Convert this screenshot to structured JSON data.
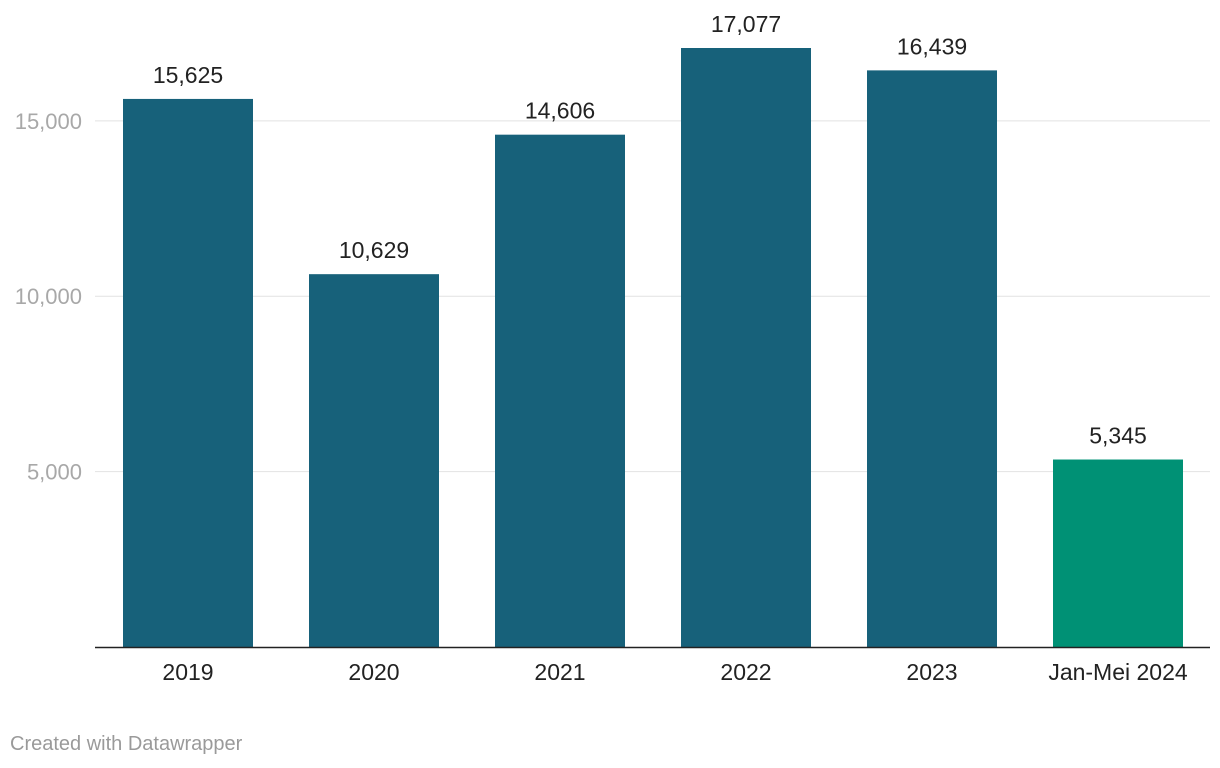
{
  "chart_data": {
    "type": "bar",
    "categories": [
      "2019",
      "2020",
      "2021",
      "2022",
      "2023",
      "Jan-Mei 2024"
    ],
    "values": [
      15625,
      10629,
      14606,
      17077,
      16439,
      5345
    ],
    "value_labels": [
      "15,625",
      "10,629",
      "14,606",
      "17,077",
      "16,439",
      "5,345"
    ],
    "title": "",
    "xlabel": "",
    "ylabel": "",
    "ylim": [
      0,
      17077
    ],
    "yticks": [
      5000,
      10000,
      15000
    ],
    "ytick_labels": [
      "5,000",
      "10,000",
      "15,000"
    ],
    "grid": true,
    "legend": "none",
    "colors": [
      "#17617a",
      "#17617a",
      "#17617a",
      "#17617a",
      "#17617a",
      "#009175"
    ]
  },
  "footer": {
    "credit": "Created with Datawrapper"
  }
}
